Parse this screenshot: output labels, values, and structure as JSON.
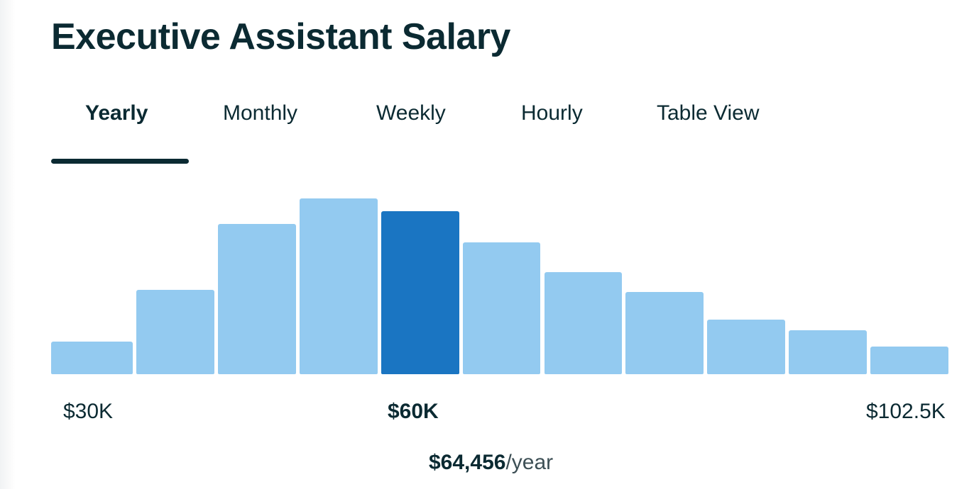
{
  "title": "Executive Assistant Salary",
  "tabs": [
    {
      "label": "Yearly",
      "active": true
    },
    {
      "label": "Monthly",
      "active": false
    },
    {
      "label": "Weekly",
      "active": false
    },
    {
      "label": "Hourly",
      "active": false
    },
    {
      "label": "Table View",
      "active": false
    }
  ],
  "colors": {
    "bar": "#93caf0",
    "bar_highlight": "#1a75c2",
    "text": "#0b2a32"
  },
  "chart_data": {
    "type": "bar",
    "values": [
      18,
      46,
      82,
      96,
      89,
      72,
      56,
      45,
      30,
      24,
      15
    ],
    "highlight_index": 4,
    "ylim": [
      0,
      100
    ],
    "tick_labels": [
      {
        "text": "$30K",
        "emphasis": false
      },
      {
        "text": "$60K",
        "emphasis": true
      },
      {
        "text": "$102.5K",
        "emphasis": false
      }
    ]
  },
  "summary": {
    "amount": "$64,456",
    "unit": "/year"
  }
}
